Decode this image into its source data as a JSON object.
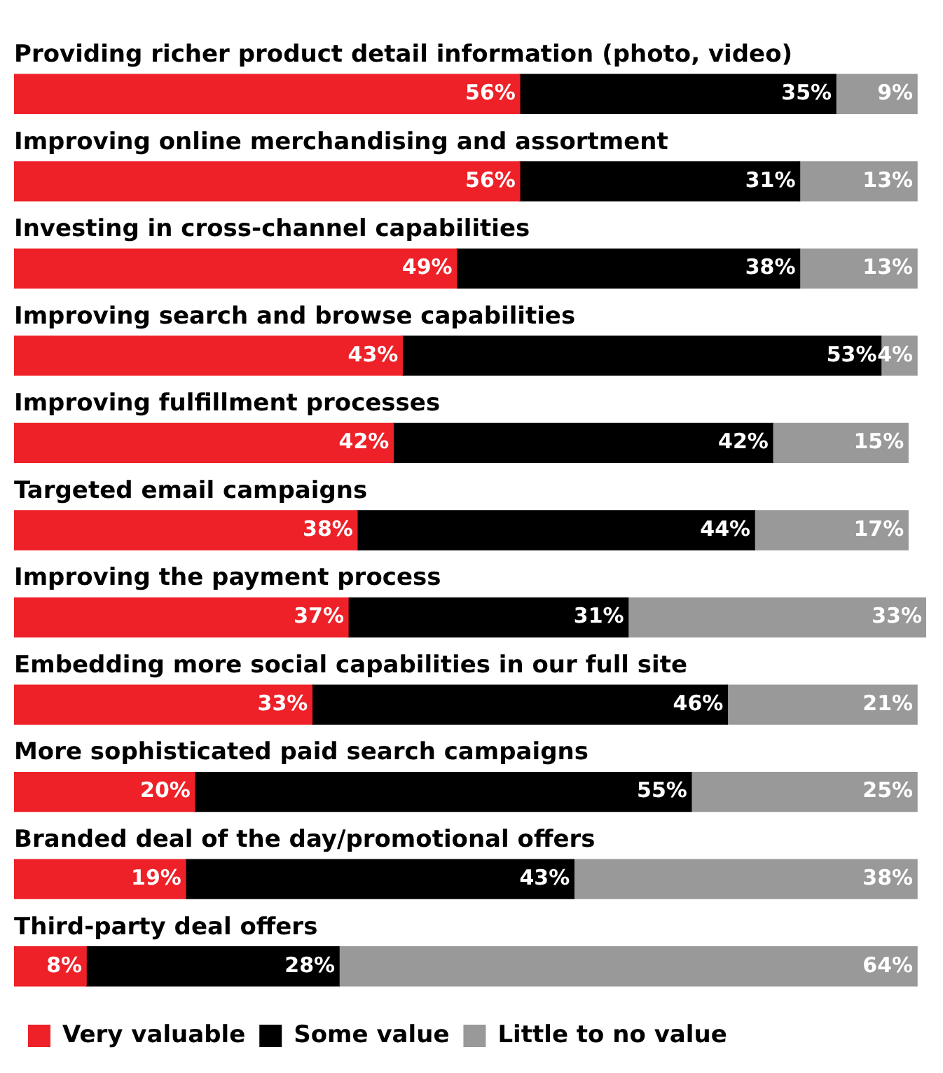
{
  "chart_data": {
    "type": "bar",
    "orientation": "horizontal",
    "stacked": true,
    "legend": "bottom left",
    "tick_labels": false,
    "categories": [
      "Providing richer product detail information (photo, video)",
      "Improving online merchandising and assortment",
      "Investing in cross-channel capabilities",
      "Improving search and browse capabilities",
      "Improving fulfillment processes",
      "Targeted email campaigns",
      "Improving the payment process",
      "Embedding more social capabilities in our full site",
      "More sophisticated paid search campaigns",
      "Branded deal of the day/promotional offers",
      "Third-party deal offers"
    ],
    "series": [
      {
        "name": "Very valuable",
        "color": "#ee2128",
        "values": [
          56,
          56,
          49,
          43,
          42,
          38,
          37,
          33,
          20,
          19,
          8
        ],
        "value_labels": [
          "56%",
          "56%",
          "49%",
          "43%",
          "42%",
          "38%",
          "37%",
          "33%",
          "20%",
          "19%",
          "8%"
        ]
      },
      {
        "name": "Some value",
        "color": "#000000",
        "values": [
          35,
          31,
          38,
          53,
          42,
          44,
          31,
          46,
          55,
          43,
          28
        ],
        "value_labels": [
          "35%",
          "31%",
          "38%",
          "53%",
          "42%",
          "44%",
          "31%",
          "46%",
          "55%",
          "43%",
          "28%"
        ]
      },
      {
        "name": "Little to no value",
        "color": "#999999",
        "values": [
          9,
          13,
          13,
          4,
          15,
          17,
          33,
          21,
          25,
          38,
          64
        ],
        "value_labels": [
          "9%",
          "13%",
          "13%",
          "4%",
          "15%",
          "17%",
          "33%",
          "21%",
          "25%",
          "38%",
          "64%"
        ]
      }
    ]
  }
}
